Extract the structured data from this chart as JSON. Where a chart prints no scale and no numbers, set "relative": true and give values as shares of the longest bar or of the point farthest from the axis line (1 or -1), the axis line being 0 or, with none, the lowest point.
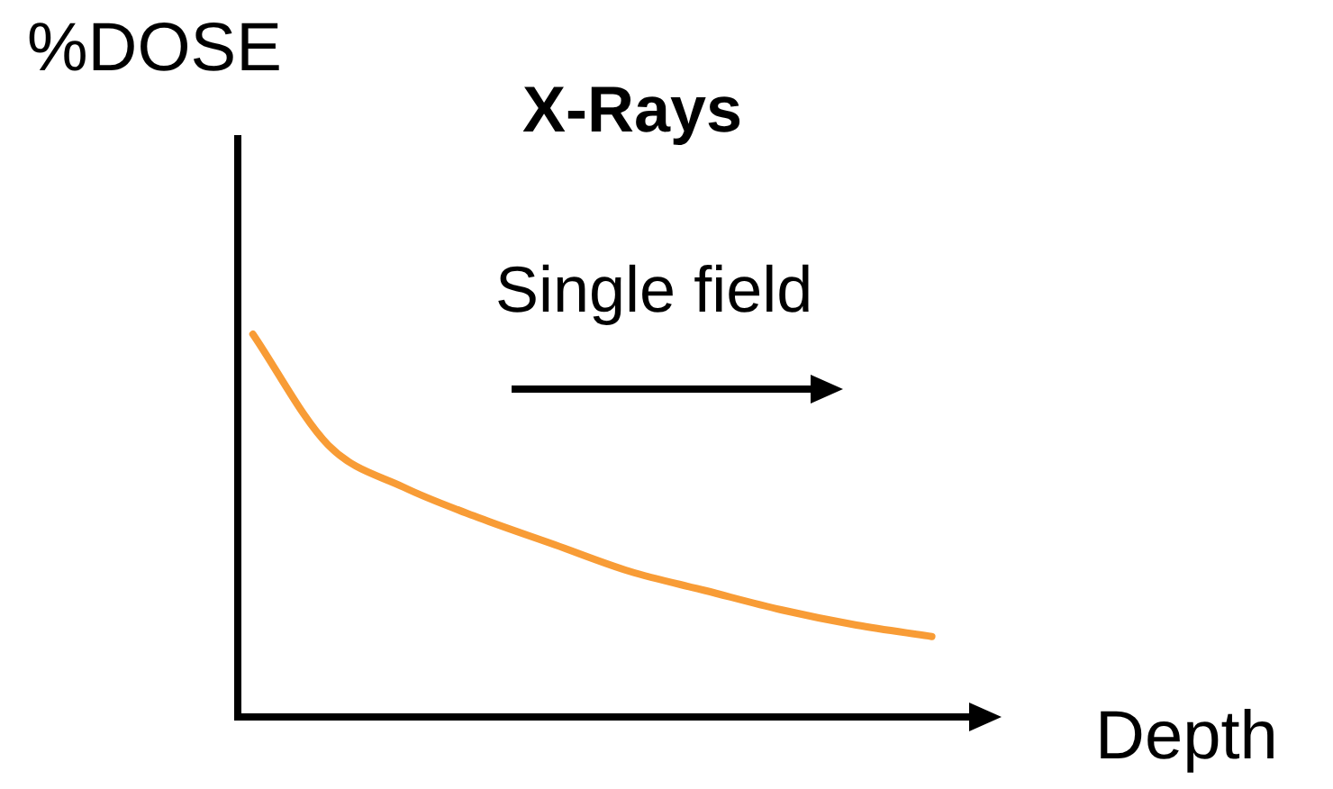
{
  "chart_data": {
    "type": "line",
    "title": "X-Rays",
    "xlabel": "Depth",
    "ylabel": "%DOSE",
    "relative": true,
    "categories": [
      null,
      null,
      null,
      null,
      null,
      null,
      null,
      null,
      null,
      null
    ],
    "series": [
      {
        "color": "#f89c36",
        "values": [
          1,
          0.71,
          0.6,
          0.52,
          0.45,
          0.38,
          0.33,
          0.28,
          0.24,
          0.21
        ]
      }
    ],
    "annotations": [
      "Single field"
    ],
    "legend": false,
    "marker": "none",
    "line_style": "solid"
  }
}
